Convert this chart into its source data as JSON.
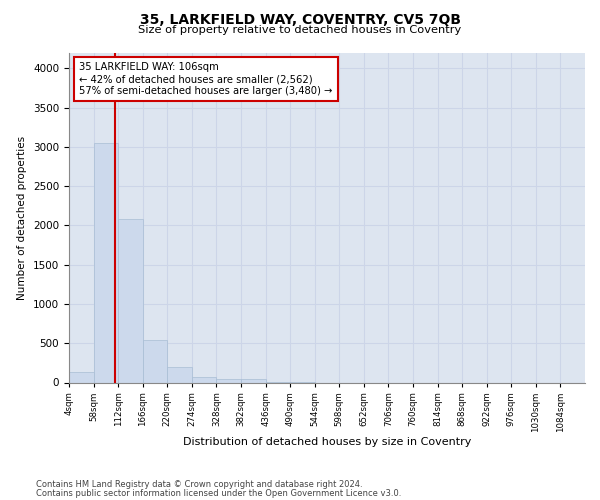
{
  "title": "35, LARKFIELD WAY, COVENTRY, CV5 7QB",
  "subtitle": "Size of property relative to detached houses in Coventry",
  "xlabel": "Distribution of detached houses by size in Coventry",
  "ylabel": "Number of detached properties",
  "footnote1": "Contains HM Land Registry data © Crown copyright and database right 2024.",
  "footnote2": "Contains public sector information licensed under the Open Government Licence v3.0.",
  "bar_color": "#ccd9ec",
  "bar_edge_color": "#a8bdd4",
  "annotation_box_color": "#cc0000",
  "vline_color": "#cc0000",
  "property_size": 106,
  "annotation_text": "35 LARKFIELD WAY: 106sqm\n← 42% of detached houses are smaller (2,562)\n57% of semi-detached houses are larger (3,480) →",
  "bins": [
    4,
    58,
    112,
    166,
    220,
    274,
    328,
    382,
    436,
    490,
    544,
    598,
    652,
    706,
    760,
    814,
    868,
    922,
    976,
    1030,
    1084
  ],
  "bar_values": [
    130,
    3050,
    2080,
    535,
    195,
    75,
    50,
    50,
    5,
    5,
    0,
    0,
    0,
    0,
    0,
    0,
    0,
    0,
    0,
    0
  ],
  "ylim": [
    0,
    4200
  ],
  "yticks": [
    0,
    500,
    1000,
    1500,
    2000,
    2500,
    3000,
    3500,
    4000
  ],
  "grid_color": "#ccd5e8",
  "background_color": "#dde5f0",
  "fig_background": "#ffffff"
}
